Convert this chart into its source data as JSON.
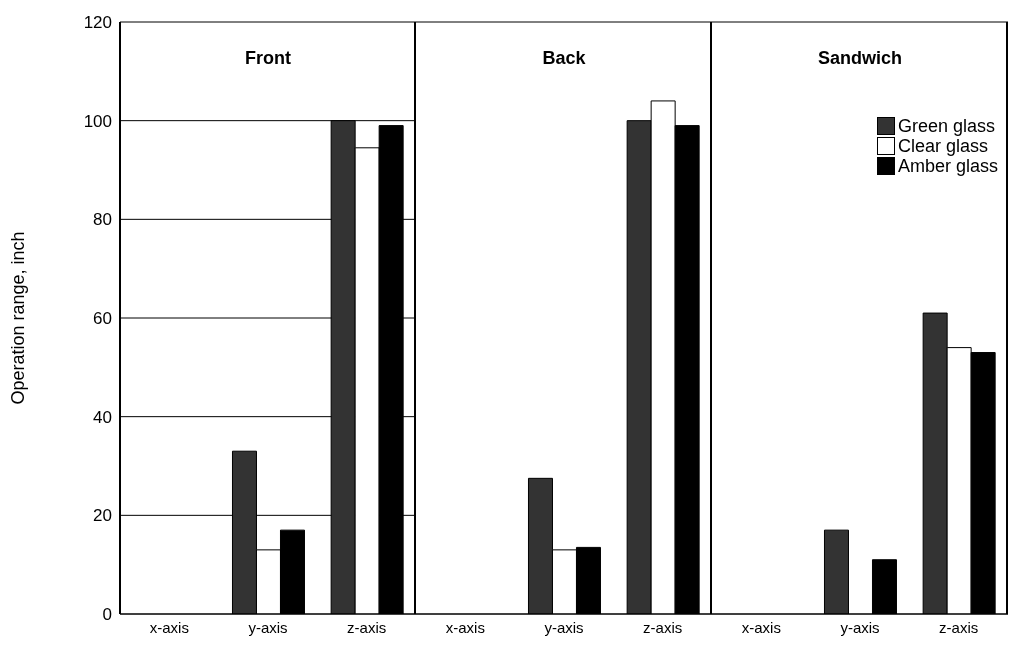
{
  "chart_data": [
    {
      "type": "bar",
      "title": "Front",
      "ylabel": "Operation range, inch",
      "categories": [
        "x-axis",
        "y-axis",
        "z-axis"
      ],
      "series": [
        {
          "color": "#333333",
          "values": [
            0,
            33,
            100
          ]
        },
        {
          "color": "#ffffff",
          "values": [
            0,
            13,
            94.5
          ]
        },
        {
          "color": "#000000",
          "values": [
            0,
            17,
            99
          ]
        }
      ],
      "ylim": [
        0,
        120
      ],
      "yticks": [
        0,
        20,
        40,
        60,
        80,
        100,
        120
      ],
      "grid": "y"
    },
    {
      "type": "bar",
      "title": "Back",
      "categories": [
        "x-axis",
        "y-axis",
        "z-axis"
      ],
      "series": [
        {
          "color": "#333333",
          "values": [
            0,
            27.5,
            100
          ]
        },
        {
          "color": "#ffffff",
          "values": [
            0,
            13,
            104
          ]
        },
        {
          "color": "#000000",
          "values": [
            0,
            13.5,
            99
          ]
        }
      ],
      "ylim": [
        0,
        120
      ],
      "yticks": [
        0,
        20,
        40,
        60,
        80,
        100,
        120
      ],
      "grid": "y",
      "tick_labels": "x"
    },
    {
      "type": "bar",
      "title": "Sandwich",
      "categories": [
        "x-axis",
        "y-axis",
        "z-axis"
      ],
      "series": [
        {
          "name": "Green glass",
          "color": "#333333",
          "values": [
            0,
            17,
            61
          ]
        },
        {
          "name": "Clear glass",
          "color": "#ffffff",
          "values": [
            0,
            0,
            54
          ]
        },
        {
          "name": "Amber glass",
          "color": "#000000",
          "values": [
            0,
            11,
            53
          ]
        }
      ],
      "ylim": [
        0,
        120
      ],
      "yticks": [
        0,
        20,
        40,
        60,
        80,
        100,
        120
      ],
      "grid": "y",
      "tick_labels": "x",
      "legend": "top right"
    }
  ]
}
